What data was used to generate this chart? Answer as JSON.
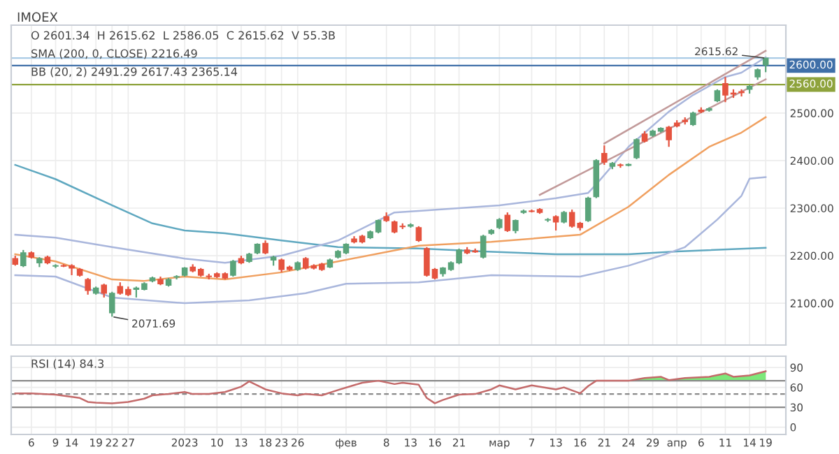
{
  "chart_data": [
    {
      "type": "candlestick",
      "title": "IMOEX",
      "tick_labels": "y",
      "grid": true,
      "categories": [
        null,
        null,
        null,
        null,
        null,
        null,
        null,
        null,
        null,
        null,
        null,
        null,
        null,
        null,
        null,
        null,
        null,
        null,
        null,
        null,
        null,
        null,
        null,
        null,
        null,
        null,
        null,
        null,
        null,
        null,
        null,
        null,
        null,
        null,
        null,
        null,
        null,
        null,
        null,
        null,
        null,
        null,
        null,
        null,
        null,
        null,
        null,
        null,
        null,
        null,
        null,
        null,
        null,
        null,
        null,
        null,
        null,
        null,
        null,
        null,
        null,
        null,
        null,
        null,
        null,
        null,
        null,
        null,
        null,
        null,
        null,
        null,
        null,
        null,
        null,
        null,
        null,
        null,
        null,
        null,
        null,
        null,
        null,
        null,
        null,
        null,
        null,
        null,
        null,
        null,
        null,
        null,
        null,
        null
      ],
      "ohlc": [
        [
          2194,
          2200,
          2179,
          2182
        ],
        [
          2179,
          2212,
          2176,
          2206
        ],
        [
          2206,
          2209,
          2194,
          2197
        ],
        [
          2185,
          2197,
          2176,
          2194
        ],
        [
          2197,
          2200,
          2182,
          2185
        ],
        [
          2178,
          2182,
          2174,
          2179
        ],
        [
          2179,
          2182,
          2176,
          2178
        ],
        [
          2179,
          2182,
          2159,
          2174
        ],
        [
          2171,
          2174,
          2156,
          2159
        ],
        [
          2150,
          2153,
          2118,
          2127
        ],
        [
          2121,
          2135,
          2118,
          2132
        ],
        [
          2138,
          2141,
          2112,
          2121
        ],
        [
          2080,
          2124,
          2071.69,
          2121
        ],
        [
          2135,
          2144,
          2118,
          2121
        ],
        [
          2129,
          2135,
          2115,
          2118
        ],
        [
          2129,
          2135,
          2112,
          2132
        ],
        [
          2129,
          2144,
          2127,
          2141
        ],
        [
          2147,
          2156,
          2144,
          2153
        ],
        [
          2150,
          2156,
          2138,
          2141
        ],
        [
          2138,
          2153,
          2135,
          2150
        ],
        [
          2155,
          2159,
          2150,
          2156
        ],
        [
          2159,
          2176,
          2156,
          2174
        ],
        [
          2176,
          2182,
          2165,
          2168
        ],
        [
          2171,
          2174,
          2156,
          2159
        ],
        [
          2157,
          2162,
          2150,
          2156
        ],
        [
          2162,
          2165,
          2153,
          2156
        ],
        [
          2162,
          2165,
          2150,
          2153
        ],
        [
          2159,
          2191,
          2156,
          2188
        ],
        [
          2194,
          2200,
          2182,
          2185
        ],
        [
          2188,
          2206,
          2185,
          2203
        ],
        [
          2206,
          2226,
          2203,
          2224
        ],
        [
          2226,
          2232,
          2203,
          2206
        ],
        [
          2191,
          2200,
          2179,
          2197
        ],
        [
          2191,
          2194,
          2165,
          2171
        ],
        [
          2176,
          2179,
          2168,
          2171
        ],
        [
          2171,
          2188,
          2168,
          2185
        ],
        [
          2194,
          2197,
          2171,
          2174
        ],
        [
          2179,
          2182,
          2171,
          2174
        ],
        [
          2182,
          2185,
          2168,
          2171
        ],
        [
          2176,
          2194,
          2174,
          2191
        ],
        [
          2197,
          2212,
          2194,
          2209
        ],
        [
          2206,
          2226,
          2203,
          2224
        ],
        [
          2235,
          2241,
          2226,
          2229
        ],
        [
          2241,
          2244,
          2226,
          2229
        ],
        [
          2238,
          2253,
          2235,
          2250
        ],
        [
          2250,
          2276,
          2247,
          2274
        ],
        [
          2282,
          2291,
          2271,
          2274
        ],
        [
          2271,
          2274,
          2247,
          2250
        ],
        [
          2262,
          2268,
          2256,
          2261
        ],
        [
          2262,
          2268,
          2259,
          2265
        ],
        [
          2259,
          2262,
          2229,
          2232
        ],
        [
          2215,
          2218,
          2156,
          2159
        ],
        [
          2171,
          2174,
          2150,
          2153
        ],
        [
          2162,
          2176,
          2156,
          2174
        ],
        [
          2171,
          2188,
          2168,
          2185
        ],
        [
          2185,
          2215,
          2182,
          2212
        ],
        [
          2212,
          2218,
          2203,
          2206
        ],
        [
          2210,
          2215,
          2206,
          2208
        ],
        [
          2197,
          2244,
          2194,
          2241
        ],
        [
          2247,
          2256,
          2244,
          2253
        ],
        [
          2259,
          2279,
          2256,
          2276
        ],
        [
          2285,
          2291,
          2250,
          2253
        ],
        [
          2253,
          2276,
          2247,
          2274
        ],
        [
          2291,
          2297,
          2288,
          2294
        ],
        [
          2294,
          2297,
          2291,
          2293
        ],
        [
          2297,
          2300,
          2288,
          2291
        ],
        [
          2275,
          2279,
          2271,
          2276
        ],
        [
          2282,
          2285,
          2253,
          2271
        ],
        [
          2271,
          2294,
          2268,
          2291
        ],
        [
          2291,
          2297,
          2259,
          2262
        ],
        [
          2268,
          2271,
          2253,
          2259
        ],
        [
          2274,
          2324,
          2271,
          2321
        ],
        [
          2324,
          2403,
          2321,
          2400
        ],
        [
          2415,
          2432,
          2391,
          2397
        ],
        [
          2388,
          2397,
          2382,
          2394
        ],
        [
          2390,
          2394,
          2385,
          2391
        ],
        [
          2390,
          2394,
          2388,
          2392
        ],
        [
          2406,
          2447,
          2403,
          2444
        ],
        [
          2456,
          2462,
          2438,
          2441
        ],
        [
          2453,
          2465,
          2450,
          2462
        ],
        [
          2462,
          2470,
          2459,
          2468
        ],
        [
          2470,
          2473,
          2429,
          2444
        ],
        [
          2479,
          2485,
          2470,
          2473
        ],
        [
          2485,
          2491,
          2476,
          2482
        ],
        [
          2476,
          2503,
          2473,
          2500
        ],
        [
          2506,
          2512,
          2500,
          2503
        ],
        [
          2506,
          2512,
          2503,
          2509
        ],
        [
          2526,
          2550,
          2523,
          2547
        ],
        [
          2562,
          2576,
          2523,
          2538
        ],
        [
          2542,
          2550,
          2532,
          2540
        ],
        [
          2545,
          2550,
          2535,
          2543
        ],
        [
          2550,
          2559,
          2541,
          2556
        ],
        [
          2576,
          2594,
          2570,
          2591
        ],
        [
          2601.34,
          2615.62,
          2586.05,
          2615.62
        ]
      ],
      "colors": [
        "#e5533f",
        "#5aa47a",
        "#e5533f",
        "#5aa47a",
        "#e5533f",
        "#5aa47a",
        "#e5533f",
        "#e5533f",
        "#e5533f",
        "#e5533f",
        "#5aa47a",
        "#e5533f",
        "#5aa47a",
        "#e5533f",
        "#e5533f",
        "#5aa47a",
        "#5aa47a",
        "#5aa47a",
        "#e5533f",
        "#5aa47a",
        "#5aa47a",
        "#5aa47a",
        "#e5533f",
        "#e5533f",
        "#e5533f",
        "#e5533f",
        "#e5533f",
        "#5aa47a",
        "#e5533f",
        "#5aa47a",
        "#5aa47a",
        "#e5533f",
        "#5aa47a",
        "#e5533f",
        "#e5533f",
        "#5aa47a",
        "#e5533f",
        "#e5533f",
        "#e5533f",
        "#5aa47a",
        "#5aa47a",
        "#5aa47a",
        "#e5533f",
        "#e5533f",
        "#5aa47a",
        "#5aa47a",
        "#e5533f",
        "#e5533f",
        "#e5533f",
        "#5aa47a",
        "#e5533f",
        "#e5533f",
        "#e5533f",
        "#5aa47a",
        "#5aa47a",
        "#5aa47a",
        "#e5533f",
        "#e5533f",
        "#5aa47a",
        "#5aa47a",
        "#5aa47a",
        "#e5533f",
        "#5aa47a",
        "#5aa47a",
        "#e5533f",
        "#e5533f",
        "#5aa47a",
        "#e5533f",
        "#5aa47a",
        "#e5533f",
        "#e5533f",
        "#5aa47a",
        "#5aa47a",
        "#e5533f",
        "#5aa47a",
        "#e5533f",
        "#5aa47a",
        "#5aa47a",
        "#e5533f",
        "#5aa47a",
        "#5aa47a",
        "#e5533f",
        "#e5533f",
        "#e5533f",
        "#5aa47a",
        "#e5533f",
        "#5aa47a",
        "#5aa47a",
        "#e5533f",
        "#e5533f",
        "#e5533f",
        "#5aa47a",
        "#5aa47a",
        "#5aa47a"
      ],
      "series": [
        {
          "type": "line",
          "color": "#5fa8c0",
          "values": [
            2391,
            null,
            null,
            null,
            null,
            2361,
            null,
            null,
            null,
            null,
            null,
            null,
            2306,
            null,
            null,
            null,
            null,
            2268,
            null,
            null,
            null,
            2253,
            null,
            null,
            null,
            null,
            2247,
            null,
            null,
            null,
            null,
            null,
            null,
            2232,
            null,
            null,
            null,
            null,
            null,
            null,
            2218,
            null,
            null,
            null,
            null,
            null,
            null,
            null,
            null,
            null,
            2215,
            null,
            null,
            null,
            null,
            null,
            null,
            null,
            2209,
            null,
            null,
            null,
            null,
            null,
            null,
            null,
            null,
            2203,
            null,
            null,
            null,
            null,
            null,
            null,
            null,
            null,
            2203,
            null,
            null,
            null,
            null,
            null,
            2209,
            null,
            null,
            null,
            null,
            null,
            null,
            null,
            null,
            null,
            null,
            2216.49
          ]
        },
        {
          "type": "line",
          "color": "#a9b6dc",
          "values": [
            2244,
            null,
            null,
            null,
            null,
            2238,
            null,
            null,
            null,
            null,
            null,
            null,
            2218,
            null,
            null,
            null,
            null,
            null,
            null,
            null,
            null,
            2194,
            null,
            null,
            null,
            null,
            2185,
            null,
            null,
            null,
            null,
            null,
            null,
            2200,
            null,
            null,
            null,
            null,
            null,
            null,
            2232,
            null,
            null,
            null,
            null,
            null,
            null,
            2291,
            null,
            null,
            2294,
            null,
            null,
            null,
            null,
            null,
            null,
            null,
            null,
            null,
            2306,
            null,
            null,
            null,
            null,
            null,
            null,
            2321,
            null,
            null,
            null,
            2332,
            2350,
            null,
            null,
            null,
            2429,
            null,
            null,
            null,
            null,
            2503,
            null,
            null,
            2538,
            null,
            null,
            null,
            2576,
            null,
            2585,
            null,
            null,
            2617.43
          ]
        },
        {
          "type": "line",
          "color": "#f0a060",
          "values": [
            2203,
            null,
            null,
            null,
            null,
            2188,
            null,
            null,
            null,
            null,
            null,
            null,
            2150,
            null,
            null,
            null,
            2147,
            null,
            null,
            null,
            null,
            2156,
            null,
            null,
            null,
            null,
            2150,
            null,
            null,
            null,
            null,
            null,
            null,
            2165,
            null,
            null,
            null,
            null,
            null,
            null,
            2188,
            null,
            null,
            null,
            null,
            null,
            null,
            null,
            null,
            null,
            2221,
            null,
            null,
            null,
            null,
            null,
            null,
            null,
            null,
            2229,
            null,
            null,
            null,
            null,
            null,
            null,
            null,
            null,
            null,
            null,
            2244,
            null,
            null,
            null,
            null,
            null,
            2303,
            null,
            null,
            null,
            null,
            2370,
            null,
            null,
            null,
            null,
            2429,
            null,
            null,
            null,
            2459,
            null,
            null,
            2491.29
          ]
        },
        {
          "type": "line",
          "color": "#a9b6dc",
          "values": [
            2159,
            null,
            null,
            null,
            null,
            2156,
            null,
            null,
            null,
            null,
            null,
            null,
            2112,
            null,
            null,
            null,
            null,
            null,
            null,
            null,
            null,
            2100,
            null,
            null,
            null,
            null,
            null,
            null,
            null,
            2106,
            null,
            null,
            null,
            null,
            null,
            null,
            2121,
            null,
            null,
            null,
            null,
            2141,
            null,
            null,
            null,
            null,
            null,
            null,
            null,
            null,
            2144,
            null,
            null,
            null,
            null,
            null,
            null,
            null,
            null,
            2159,
            null,
            null,
            null,
            null,
            null,
            null,
            null,
            null,
            null,
            null,
            2156,
            null,
            null,
            null,
            null,
            null,
            2179,
            null,
            null,
            null,
            2200,
            null,
            null,
            2218,
            null,
            null,
            null,
            2276,
            null,
            null,
            2326,
            2362,
            null,
            2365.14
          ]
        },
        {
          "type": "line",
          "color": "#c29a9a",
          "values": [
            null,
            null,
            null,
            null,
            null,
            null,
            null,
            null,
            null,
            null,
            null,
            null,
            null,
            null,
            null,
            null,
            null,
            null,
            null,
            null,
            null,
            null,
            null,
            null,
            null,
            null,
            null,
            null,
            null,
            null,
            null,
            null,
            null,
            null,
            null,
            null,
            null,
            null,
            null,
            null,
            null,
            null,
            null,
            null,
            null,
            null,
            null,
            null,
            null,
            null,
            null,
            null,
            null,
            null,
            null,
            null,
            null,
            null,
            null,
            null,
            null,
            null,
            null,
            null,
            null,
            2328,
            null,
            null,
            null,
            null,
            null,
            null,
            null,
            null,
            null,
            null,
            null,
            null,
            null,
            null,
            null,
            null,
            null,
            null,
            null,
            null,
            null,
            null,
            null,
            null,
            null,
            null,
            null,
            2571
          ]
        },
        {
          "type": "line",
          "color": "#c29a9a",
          "values": [
            null,
            null,
            null,
            null,
            null,
            null,
            null,
            null,
            null,
            null,
            null,
            null,
            null,
            null,
            null,
            null,
            null,
            null,
            null,
            null,
            null,
            null,
            null,
            null,
            null,
            null,
            null,
            null,
            null,
            null,
            null,
            null,
            null,
            null,
            null,
            null,
            null,
            null,
            null,
            null,
            null,
            null,
            null,
            null,
            null,
            null,
            null,
            null,
            null,
            null,
            null,
            null,
            null,
            null,
            null,
            null,
            null,
            null,
            null,
            null,
            null,
            null,
            null,
            null,
            null,
            null,
            null,
            null,
            null,
            null,
            null,
            null,
            null,
            2436,
            null,
            null,
            null,
            null,
            null,
            null,
            null,
            null,
            null,
            null,
            null,
            null,
            null,
            null,
            null,
            null,
            null,
            null,
            null,
            2631
          ]
        }
      ],
      "ylim": [
        2012,
        2685
      ],
      "yticks": [
        {
          "value": 2100,
          "label": "2100.00"
        },
        {
          "value": 2200,
          "label": "2200.00"
        },
        {
          "value": 2300,
          "label": "2300.00"
        },
        {
          "value": 2400,
          "label": "2400.00"
        },
        {
          "value": 2500,
          "label": "2500.00"
        }
      ],
      "ref_lines": [
        {
          "axis": "y",
          "value": 2615.62,
          "label": null,
          "color": "#a9cbe6"
        },
        {
          "axis": "y",
          "value": 2600,
          "label": "2600.00",
          "color": "#3f6fa8"
        },
        {
          "axis": "y",
          "value": 2560,
          "label": "2560.00",
          "color": "#8ea33c"
        }
      ],
      "annotations": [
        "O 2601.34  H 2615.62  L 2586.05  C 2615.62  V 55.3B",
        "SMA (200, 0, CLOSE) 2216.49",
        "BB (20, 2) 2491.29 2617.43 2365.14",
        {
          "text": "2615.62",
          "y": 2615.62
        },
        "2071.69"
      ]
    },
    {
      "type": "line",
      "grid": true,
      "categories": [
        null,
        null,
        "6",
        null,
        null,
        "9",
        null,
        "14",
        null,
        null,
        "19",
        null,
        "22",
        null,
        "27",
        null,
        null,
        null,
        null,
        null,
        null,
        "2023",
        null,
        null,
        null,
        "10",
        null,
        null,
        "13",
        null,
        null,
        "18",
        null,
        "23",
        null,
        "26",
        null,
        null,
        null,
        null,
        null,
        "фев",
        null,
        null,
        null,
        null,
        "8",
        null,
        null,
        "13",
        null,
        null,
        "16",
        null,
        null,
        "21",
        null,
        null,
        null,
        null,
        "мар",
        null,
        null,
        null,
        "7",
        null,
        null,
        "13",
        null,
        null,
        "16",
        null,
        null,
        "21",
        null,
        null,
        "24",
        null,
        null,
        "29",
        null,
        null,
        "апр",
        null,
        null,
        "6",
        null,
        null,
        "11",
        null,
        null,
        "14",
        null,
        "19"
      ],
      "series": [
        {
          "type": "line",
          "color": "#c46a6a",
          "values": [
            51,
            null,
            51,
            null,
            null,
            49,
            null,
            null,
            44,
            38,
            37,
            null,
            36,
            null,
            38,
            null,
            43,
            48,
            null,
            50,
            null,
            53,
            50,
            null,
            50,
            null,
            53,
            null,
            61,
            69,
            null,
            57,
            null,
            51,
            null,
            48,
            50,
            null,
            48,
            null,
            56,
            null,
            null,
            67,
            null,
            70,
            null,
            65,
            67,
            null,
            64,
            44,
            36,
            41,
            null,
            49,
            null,
            50,
            null,
            57,
            63,
            null,
            57,
            null,
            63,
            null,
            null,
            57,
            60,
            null,
            51,
            62,
            70,
            null,
            null,
            null,
            70,
            null,
            74,
            null,
            76,
            71,
            null,
            74,
            null,
            null,
            76,
            null,
            81,
            76,
            null,
            78,
            null,
            84.3
          ]
        },
        {
          "type": "area",
          "color": "#7de87a",
          "values": [
            null,
            null,
            null,
            null,
            null,
            null,
            null,
            null,
            null,
            null,
            null,
            null,
            null,
            null,
            null,
            null,
            null,
            null,
            null,
            null,
            null,
            null,
            null,
            null,
            null,
            null,
            null,
            null,
            null,
            null,
            null,
            null,
            null,
            null,
            null,
            null,
            null,
            null,
            null,
            null,
            null,
            null,
            null,
            null,
            null,
            null,
            null,
            null,
            null,
            null,
            null,
            null,
            null,
            null,
            null,
            null,
            null,
            null,
            null,
            null,
            null,
            null,
            null,
            null,
            null,
            null,
            null,
            null,
            null,
            null,
            null,
            null,
            70,
            null,
            null,
            null,
            70,
            null,
            74,
            null,
            76,
            71,
            null,
            74,
            null,
            null,
            76,
            null,
            81,
            76,
            null,
            78,
            null,
            84.3
          ]
        }
      ],
      "ylim": [
        -11,
        107
      ],
      "yticks": [
        0,
        30,
        60,
        90
      ],
      "ref_lines": [
        {
          "axis": "y",
          "value": 70,
          "label": null,
          "color": "#8a8a8a"
        },
        {
          "axis": "y",
          "value": 50,
          "label": null,
          "color": "#8a8a8a",
          "line_style": "dashed"
        },
        {
          "axis": "y",
          "value": 30,
          "label": null,
          "color": "#8a8a8a"
        }
      ],
      "annotations": [
        "RSI (14) 84.3"
      ]
    }
  ]
}
